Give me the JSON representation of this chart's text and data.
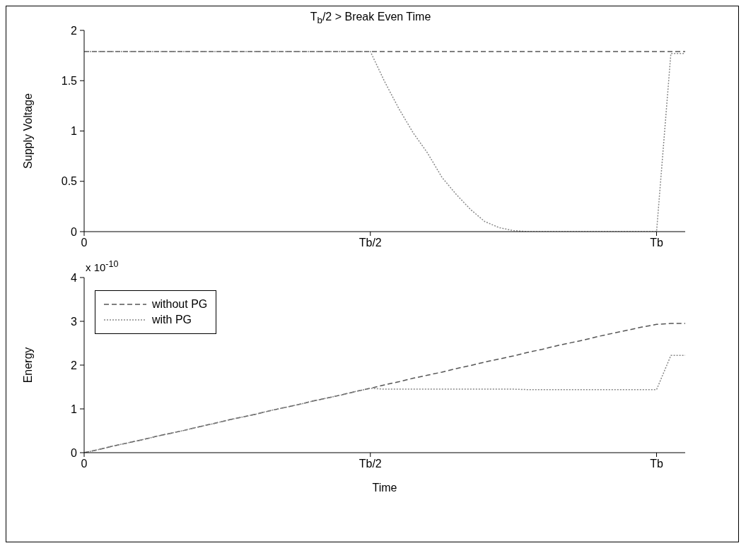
{
  "chart_data": [
    {
      "type": "line",
      "title": "T$_{b}$/2 > Break Even Time",
      "ylabel": "Supply Voltage",
      "categories": [
        "0",
        null,
        null,
        null,
        null,
        null,
        null,
        null,
        null,
        null,
        null,
        null,
        null,
        null,
        null,
        null,
        null,
        null,
        null,
        null,
        "Tb/2",
        null,
        null,
        null,
        null,
        null,
        null,
        null,
        null,
        null,
        null,
        null,
        null,
        null,
        null,
        null,
        null,
        null,
        null,
        null,
        "Tb",
        null,
        null
      ],
      "ylim": [
        0,
        2
      ],
      "yticks": [
        0,
        0.5,
        1,
        1.5,
        2
      ],
      "legend": false,
      "series": [
        {
          "color": "#555555",
          "line_style": "dashed",
          "values": [
            1.79,
            1.79,
            1.79,
            1.79,
            1.79,
            1.79,
            1.79,
            1.79,
            1.79,
            1.79,
            1.79,
            1.79,
            1.79,
            1.79,
            1.79,
            1.79,
            1.79,
            1.79,
            1.79,
            1.79,
            1.79,
            1.79,
            1.79,
            1.79,
            1.79,
            1.79,
            1.79,
            1.79,
            1.79,
            1.79,
            1.79,
            1.79,
            1.79,
            1.79,
            1.79,
            1.79,
            1.79,
            1.79,
            1.79,
            1.79,
            1.79,
            1.79,
            1.79
          ]
        },
        {
          "color": "#888888",
          "line_style": "dotted",
          "values": [
            1.79,
            1.79,
            1.79,
            1.79,
            1.79,
            1.79,
            1.79,
            1.79,
            1.79,
            1.79,
            1.79,
            1.79,
            1.79,
            1.79,
            1.79,
            1.79,
            1.79,
            1.79,
            1.79,
            1.79,
            1.79,
            1.49,
            1.22,
            0.98,
            0.78,
            0.54,
            0.37,
            0.22,
            0.1,
            0.04,
            0.01,
            0,
            0,
            0,
            0,
            0,
            0,
            0,
            0,
            0,
            0,
            1.77,
            1.77
          ]
        }
      ]
    },
    {
      "type": "line",
      "xlabel": "Time",
      "ylabel": "Energy",
      "annotations": [
        "x 10$^{-10}$"
      ],
      "categories": [
        "0",
        null,
        null,
        null,
        null,
        null,
        null,
        null,
        null,
        null,
        null,
        null,
        null,
        null,
        null,
        null,
        null,
        null,
        null,
        null,
        "Tb/2",
        null,
        null,
        null,
        null,
        null,
        null,
        null,
        null,
        null,
        null,
        null,
        null,
        null,
        null,
        null,
        null,
        null,
        null,
        null,
        "Tb",
        null,
        null
      ],
      "ylim": [
        0,
        4
      ],
      "yticks": [
        0,
        1,
        2,
        3,
        4
      ],
      "legend": "top left",
      "series": [
        {
          "name": "without PG",
          "color": "#555555",
          "line_style": "dashed",
          "values": [
            0,
            0.07,
            0.15,
            0.22,
            0.29,
            0.37,
            0.44,
            0.51,
            0.59,
            0.66,
            0.74,
            0.81,
            0.88,
            0.96,
            1.03,
            1.1,
            1.18,
            1.25,
            1.32,
            1.4,
            1.47,
            1.55,
            1.62,
            1.7,
            1.77,
            1.84,
            1.92,
            1.99,
            2.07,
            2.14,
            2.21,
            2.29,
            2.36,
            2.44,
            2.51,
            2.58,
            2.66,
            2.73,
            2.8,
            2.87,
            2.93,
            2.95,
            2.95
          ]
        },
        {
          "name": "with PG",
          "color": "#888888",
          "line_style": "dotted",
          "values": [
            0,
            0.07,
            0.15,
            0.22,
            0.29,
            0.37,
            0.44,
            0.51,
            0.59,
            0.66,
            0.74,
            0.81,
            0.88,
            0.96,
            1.03,
            1.1,
            1.18,
            1.25,
            1.32,
            1.4,
            1.47,
            1.45,
            1.45,
            1.45,
            1.45,
            1.45,
            1.45,
            1.45,
            1.45,
            1.45,
            1.45,
            1.44,
            1.44,
            1.44,
            1.44,
            1.44,
            1.44,
            1.44,
            1.44,
            1.44,
            1.44,
            2.22,
            2.22
          ]
        }
      ]
    }
  ]
}
